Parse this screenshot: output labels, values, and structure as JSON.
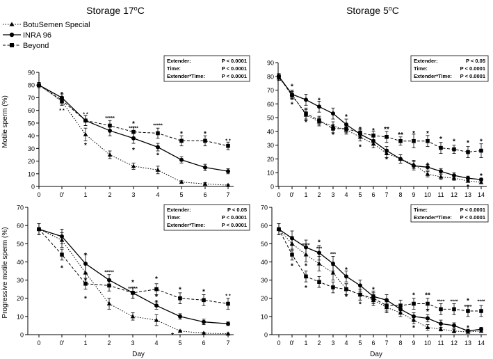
{
  "legend": [
    {
      "label": "BotuSemen Special",
      "marker": "triangle"
    },
    {
      "label": "INRA 96",
      "marker": "circle"
    },
    {
      "label": "Beyond",
      "marker": "square"
    }
  ],
  "panel_titles": {
    "left": {
      "main": "Storage 17",
      "sup": "o",
      "tail": "C"
    },
    "right": {
      "main": "Storage 5",
      "sup": "o",
      "tail": "C"
    }
  },
  "chart_data": [
    {
      "id": "A",
      "type": "line",
      "title": "Storage 17oC",
      "ylabel": "Motile sperm (%)",
      "xlabel": "Day",
      "ylim": [
        0,
        90
      ],
      "yticks": [
        0,
        10,
        20,
        30,
        40,
        50,
        60,
        70,
        80,
        90
      ],
      "categories": [
        "0",
        "0'",
        "1",
        "2",
        "3",
        "4",
        "5",
        "6",
        "7"
      ],
      "series": [
        {
          "name": "BotuSemen Special",
          "marker": "triangle",
          "dash": "dotted",
          "values": [
            80,
            67,
            41,
            25,
            16,
            13,
            3.5,
            2,
            1
          ],
          "err": [
            2,
            3,
            5,
            3,
            2.5,
            3,
            1,
            1,
            0.5
          ]
        },
        {
          "name": "INRA 96",
          "marker": "circle",
          "dash": "solid",
          "values": [
            80,
            70,
            52,
            44,
            38,
            31,
            21,
            15,
            12
          ],
          "err": [
            2,
            3,
            4,
            4,
            4,
            3,
            2.5,
            2.5,
            2
          ]
        },
        {
          "name": "Beyond",
          "marker": "square",
          "dash": "dashed",
          "values": [
            80,
            68,
            52,
            48,
            43,
            42,
            36,
            36,
            32
          ],
          "err": [
            2,
            3,
            4,
            4,
            4,
            4,
            4,
            4,
            3
          ]
        }
      ],
      "annotations": [
        {
          "x": "0'",
          "y": 73,
          "text": "*"
        },
        {
          "x": "0'",
          "y": 61,
          "text": "* *"
        },
        {
          "x": "1",
          "y": 58,
          "text": "* *"
        },
        {
          "x": "1",
          "y": 33,
          "text": "*"
        },
        {
          "x": "2",
          "y": 55,
          "text": "*****"
        },
        {
          "x": "3",
          "y": 50,
          "text": "*"
        },
        {
          "x": "3",
          "y": 47,
          "text": "*****"
        },
        {
          "x": "3",
          "y": 29,
          "text": "*"
        },
        {
          "x": "4",
          "y": 49,
          "text": "*****"
        },
        {
          "x": "4",
          "y": 25,
          "text": "*"
        },
        {
          "x": "5",
          "y": 42,
          "text": "*"
        },
        {
          "x": "6",
          "y": 42,
          "text": "*"
        },
        {
          "x": "7",
          "y": 37,
          "text": "* *"
        }
      ],
      "stats": [
        {
          "label": "Extender:",
          "value": "P < 0.0001"
        },
        {
          "label": "Time:",
          "value": "P < 0.0001"
        },
        {
          "label": "Extender*Time:",
          "value": "P < 0.0001"
        }
      ]
    },
    {
      "id": "B",
      "type": "line",
      "title": "Storage 5oC",
      "ylabel": "",
      "xlabel": "",
      "ylim": [
        0,
        90
      ],
      "yticks": [
        0,
        10,
        20,
        30,
        40,
        50,
        60,
        70,
        80,
        90
      ],
      "categories": [
        "0",
        "0'",
        "1",
        "2",
        "3",
        "4",
        "5",
        "6",
        "7",
        "8",
        "9",
        "10",
        "11",
        "12",
        "13",
        "14"
      ],
      "series": [
        {
          "name": "BotuSemen Special",
          "marker": "triangle",
          "dash": "dotted",
          "values": [
            79,
            67,
            52,
            47,
            44,
            41,
            36,
            31,
            24,
            20,
            16,
            9,
            7,
            6,
            4,
            3
          ],
          "err": [
            2,
            3,
            4,
            3,
            3,
            3,
            3,
            3,
            3,
            3,
            3,
            2,
            2,
            1.5,
            1,
            1
          ]
        },
        {
          "name": "INRA 96",
          "marker": "circle",
          "dash": "solid",
          "values": [
            80,
            67,
            63,
            58,
            53,
            45,
            38,
            33,
            26,
            20,
            15,
            14,
            11,
            8,
            6,
            5
          ],
          "err": [
            2,
            3,
            4,
            4,
            4,
            4,
            3,
            3,
            3,
            3,
            3,
            2,
            2,
            2,
            1.5,
            1
          ]
        },
        {
          "name": "Beyond",
          "marker": "square",
          "dash": "dashed",
          "values": [
            80,
            66,
            53,
            48,
            42,
            42,
            39,
            37,
            36,
            33,
            33,
            33,
            28,
            27,
            25,
            26
          ],
          "err": [
            2,
            3,
            4,
            3,
            3,
            3,
            3,
            3,
            4,
            3,
            5,
            4,
            4,
            3,
            4,
            5
          ]
        }
      ],
      "annotations": [
        {
          "x": "0'",
          "y": 73,
          "text": "*"
        },
        {
          "x": "0'",
          "y": 60,
          "text": "*"
        },
        {
          "x": "1",
          "y": 47,
          "text": "*"
        },
        {
          "x": "2",
          "y": 63,
          "text": "*"
        },
        {
          "x": "3",
          "y": 38,
          "text": "*"
        },
        {
          "x": "4",
          "y": 51,
          "text": "*"
        },
        {
          "x": "5",
          "y": 42,
          "text": "*"
        },
        {
          "x": "5",
          "y": 29,
          "text": "*"
        },
        {
          "x": "6",
          "y": 41,
          "text": "*"
        },
        {
          "x": "7",
          "y": 42,
          "text": "**"
        },
        {
          "x": "7",
          "y": 20,
          "text": "*"
        },
        {
          "x": "8",
          "y": 38,
          "text": "**"
        },
        {
          "x": "9",
          "y": 39,
          "text": "*"
        },
        {
          "x": "10",
          "y": 39,
          "text": "*"
        },
        {
          "x": "10",
          "y": 16,
          "text": "*"
        },
        {
          "x": "11",
          "y": 35,
          "text": "*"
        },
        {
          "x": "12",
          "y": 33,
          "text": "*"
        },
        {
          "x": "13",
          "y": 32,
          "text": "*"
        },
        {
          "x": "14",
          "y": 33,
          "text": "*"
        },
        {
          "x": "14",
          "y": 8,
          "text": "*"
        },
        {
          "x": "13",
          "y": 0,
          "text": "*"
        }
      ],
      "stats": [
        {
          "label": "Extender:",
          "value": "P < 0.05"
        },
        {
          "label": "Time:",
          "value": "P < 0.0001"
        },
        {
          "label": "Extender*Time:",
          "value": "P < 0.0001"
        }
      ]
    },
    {
      "id": "C",
      "type": "line",
      "title": "",
      "ylabel": "Progressive motile sperm (%)",
      "xlabel": "Day",
      "ylim": [
        0,
        70
      ],
      "yticks": [
        0,
        10,
        20,
        30,
        40,
        50,
        60,
        70
      ],
      "categories": [
        "0",
        "0'",
        "1",
        "2",
        "3",
        "4",
        "5",
        "6",
        "7"
      ],
      "series": [
        {
          "name": "BotuSemen Special",
          "marker": "triangle",
          "dash": "dotted",
          "values": [
            58,
            52,
            34,
            17,
            10,
            8,
            2,
            0.8,
            0.5
          ],
          "err": [
            3,
            4,
            5,
            3,
            2,
            3,
            0.5,
            0.5,
            0.3
          ]
        },
        {
          "name": "INRA 96",
          "marker": "circle",
          "dash": "solid",
          "values": [
            58,
            54,
            39,
            30,
            23,
            16,
            10,
            7,
            6
          ],
          "err": [
            3,
            4,
            5,
            3,
            3,
            2,
            1.5,
            1.5,
            1
          ]
        },
        {
          "name": "Beyond",
          "marker": "square",
          "dash": "dashed",
          "values": [
            58,
            44,
            28,
            27,
            23,
            25,
            20,
            19,
            17
          ],
          "err": [
            3,
            3,
            3,
            3,
            3,
            3,
            3,
            3,
            3
          ]
        }
      ],
      "annotations": [
        {
          "x": "0'",
          "y": 37,
          "text": "*"
        },
        {
          "x": "1",
          "y": 44,
          "text": "*"
        },
        {
          "x": "1",
          "y": 30,
          "text": "*"
        },
        {
          "x": "1",
          "y": 20,
          "text": "*"
        },
        {
          "x": "2",
          "y": 35,
          "text": "*****"
        },
        {
          "x": "3",
          "y": 29,
          "text": "*"
        },
        {
          "x": "3",
          "y": 26,
          "text": "*****"
        },
        {
          "x": "4",
          "y": 31,
          "text": "*"
        },
        {
          "x": "4",
          "y": 21,
          "text": "*"
        },
        {
          "x": "4",
          "y": 18,
          "text": "*"
        },
        {
          "x": "5",
          "y": 25,
          "text": "*"
        },
        {
          "x": "4.7",
          "y": 0,
          "text": "*"
        },
        {
          "x": "6",
          "y": 24,
          "text": "*"
        },
        {
          "x": "7",
          "y": 22,
          "text": "* *"
        }
      ],
      "stats": [
        {
          "label": "Extender:",
          "value": "P < 0.05"
        },
        {
          "label": "Time:",
          "value": "P < 0.0001"
        },
        {
          "label": "Extender*Time:",
          "value": "P < 0.0001"
        }
      ]
    },
    {
      "id": "D",
      "type": "line",
      "title": "",
      "ylabel": "",
      "xlabel": "Day",
      "ylim": [
        0,
        70
      ],
      "yticks": [
        0,
        10,
        20,
        30,
        40,
        50,
        60,
        70
      ],
      "categories": [
        "0",
        "0'",
        "1",
        "2",
        "3",
        "4",
        "5",
        "6",
        "7",
        "8",
        "9",
        "10",
        "11",
        "12",
        "13",
        "14"
      ],
      "series": [
        {
          "name": "BotuSemen Special",
          "marker": "triangle",
          "dash": "dotted",
          "values": [
            58,
            50,
            44,
            39,
            34,
            25,
            22,
            19,
            15,
            12,
            8,
            4,
            3,
            2,
            1.5,
            2
          ],
          "err": [
            3,
            4,
            4,
            4,
            4,
            3,
            3,
            3,
            3,
            2,
            2,
            1.5,
            1,
            1,
            0.5,
            0.5
          ]
        },
        {
          "name": "INRA 96",
          "marker": "circle",
          "dash": "solid",
          "values": [
            58,
            53,
            48,
            45,
            39,
            32,
            27,
            21,
            19,
            14,
            10,
            9,
            6,
            5,
            2,
            3
          ],
          "err": [
            3,
            4,
            4,
            4,
            4,
            3,
            3,
            3,
            3,
            2,
            2,
            2,
            2,
            1.5,
            1,
            1
          ]
        },
        {
          "name": "Beyond",
          "marker": "square",
          "dash": "dashed",
          "values": [
            58,
            44,
            32,
            29,
            26,
            25,
            22,
            20,
            16,
            16,
            17,
            17,
            14,
            14,
            13,
            13
          ],
          "err": [
            3,
            3,
            3,
            3,
            3,
            3,
            3,
            3,
            3,
            3,
            3,
            3,
            3,
            3,
            3,
            3
          ]
        }
      ],
      "annotations": [
        {
          "x": "0'",
          "y": 38,
          "text": "*"
        },
        {
          "x": "1",
          "y": 50,
          "text": "****"
        },
        {
          "x": "1",
          "y": 38,
          "text": "*"
        },
        {
          "x": "1",
          "y": 26,
          "text": "*"
        },
        {
          "x": "2",
          "y": 51,
          "text": "*"
        },
        {
          "x": "2",
          "y": 48,
          "text": "***"
        },
        {
          "x": "3",
          "y": 45,
          "text": "***"
        },
        {
          "x": "4",
          "y": 36,
          "text": "*"
        },
        {
          "x": "4",
          "y": 21,
          "text": "*"
        },
        {
          "x": "5",
          "y": 17,
          "text": "*"
        },
        {
          "x": "6",
          "y": 25,
          "text": "*"
        },
        {
          "x": "9",
          "y": 22,
          "text": "*"
        },
        {
          "x": "9",
          "y": 4,
          "text": "*"
        },
        {
          "x": "10",
          "y": 22,
          "text": "**"
        },
        {
          "x": "10",
          "y": 13,
          "text": "*"
        },
        {
          "x": "11",
          "y": 19,
          "text": "****"
        },
        {
          "x": "12",
          "y": 19,
          "text": "****"
        },
        {
          "x": "13",
          "y": 19,
          "text": "*"
        },
        {
          "x": "13",
          "y": 16,
          "text": "****"
        },
        {
          "x": "13",
          "y": 4,
          "text": "*"
        },
        {
          "x": "14",
          "y": 19,
          "text": "****"
        }
      ],
      "stats": [
        {
          "label": "Time:",
          "value": "P < 0.0001"
        },
        {
          "label": "Extender*Time:",
          "value": "P < 0.0001"
        }
      ]
    }
  ]
}
